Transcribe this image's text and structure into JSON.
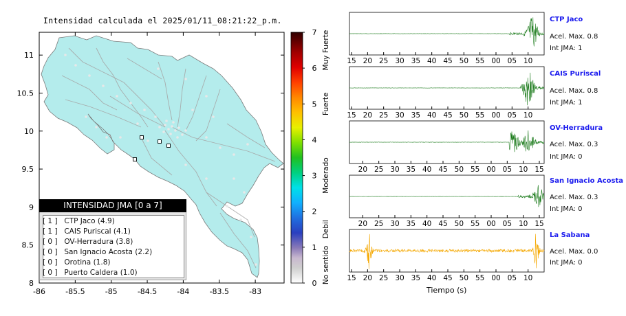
{
  "map": {
    "title": "Intensidad calculada el 2025/01/11_08:21:22_p.m.",
    "x_ticks": [
      "-86",
      "-85.5",
      "-85",
      "-84.5",
      "-84",
      "-83.5",
      "-83"
    ],
    "y_ticks": [
      "11",
      "10.5",
      "10",
      "9.5",
      "9",
      "8.5",
      "8"
    ],
    "land_color": "#b4ecec",
    "border_color": "#7a7a7a"
  },
  "colorbar": {
    "ticks": [
      "0",
      "1",
      "2",
      "3",
      "4",
      "5",
      "6",
      "7"
    ],
    "categories": [
      "No sentido",
      "Debil",
      "Moderado",
      "Fuerte",
      "Muy Fuerte"
    ]
  },
  "legend": {
    "header": "INTENSIDAD JMA [0 a 7]",
    "items": [
      {
        "marker": "[ 1 ]",
        "label": "CTP Jaco (4.9)"
      },
      {
        "marker": "[ 1 ]",
        "label": "CAIS Puriscal (4.1)"
      },
      {
        "marker": "[ 0 ]",
        "label": "OV-Herradura (3.8)"
      },
      {
        "marker": "[ 0 ]",
        "label": "San Ignacio Acosta (2.2)"
      },
      {
        "marker": "[ 0 ]",
        "label": "Orotina (1.8)"
      },
      {
        "marker": "[ 0 ]",
        "label": "Puerto Caldera (1.0)"
      }
    ]
  },
  "traces": [
    {
      "name": "CTP Jaco",
      "accel": "Acel. Max. 0.8",
      "intensity": "Int JMA: 1",
      "color": "#1a7a1a",
      "ticks": [
        "15",
        "20",
        "25",
        "30",
        "35",
        "40",
        "45",
        "50",
        "55",
        "00",
        "05",
        "10"
      ]
    },
    {
      "name": "CAIS Puriscal",
      "accel": "Acel. Max. 0.8",
      "intensity": "Int JMA: 1",
      "color": "#1a7a1a",
      "ticks": [
        "15",
        "20",
        "25",
        "30",
        "35",
        "40",
        "45",
        "50",
        "55",
        "00",
        "05",
        "10"
      ]
    },
    {
      "name": "OV-Herradura",
      "accel": "Acel. Max. 0.3",
      "intensity": "Int JMA: 0",
      "color": "#1a7a1a",
      "ticks": [
        "20",
        "25",
        "30",
        "35",
        "40",
        "45",
        "50",
        "55",
        "00",
        "05",
        "10",
        "15"
      ]
    },
    {
      "name": "San Ignacio Acosta",
      "accel": "Acel. Max. 0.3",
      "intensity": "Int JMA: 0",
      "color": "#1a7a1a",
      "ticks": [
        "20",
        "25",
        "30",
        "35",
        "40",
        "45",
        "50",
        "55",
        "00",
        "05",
        "10",
        "15"
      ]
    },
    {
      "name": "La Sabana",
      "accel": "Acel. Max. 0.0",
      "intensity": "Int JMA: 0",
      "color": "#f5a800",
      "ticks": [
        "15",
        "20",
        "25",
        "30",
        "35",
        "40",
        "45",
        "50",
        "55",
        "00",
        "05",
        "10"
      ]
    }
  ],
  "xlabel": "Tiempo (s)",
  "chart_data": [
    {
      "type": "scatter",
      "title": "Intensidad calculada el 2025/01/11_08:21:22_p.m.",
      "xlim": [
        -86,
        -82.6
      ],
      "ylim": [
        8,
        11.3
      ],
      "colorbar_range": [
        0,
        7
      ],
      "colorbar_labels": [
        "No sentido",
        "Debil",
        "Moderado",
        "Fuerte",
        "Muy Fuerte"
      ]
    },
    {
      "type": "line",
      "series": [
        {
          "name": "CTP Jaco",
          "peak_accel": 0.8,
          "jma_intensity": 1
        },
        {
          "name": "CAIS Puriscal",
          "peak_accel": 0.8,
          "jma_intensity": 1
        },
        {
          "name": "OV-Herradura",
          "peak_accel": 0.3,
          "jma_intensity": 0
        },
        {
          "name": "San Ignacio Acosta",
          "peak_accel": 0.3,
          "jma_intensity": 0
        },
        {
          "name": "La Sabana",
          "peak_accel": 0.0,
          "jma_intensity": 0
        }
      ],
      "xlabel": "Tiempo (s)"
    }
  ]
}
